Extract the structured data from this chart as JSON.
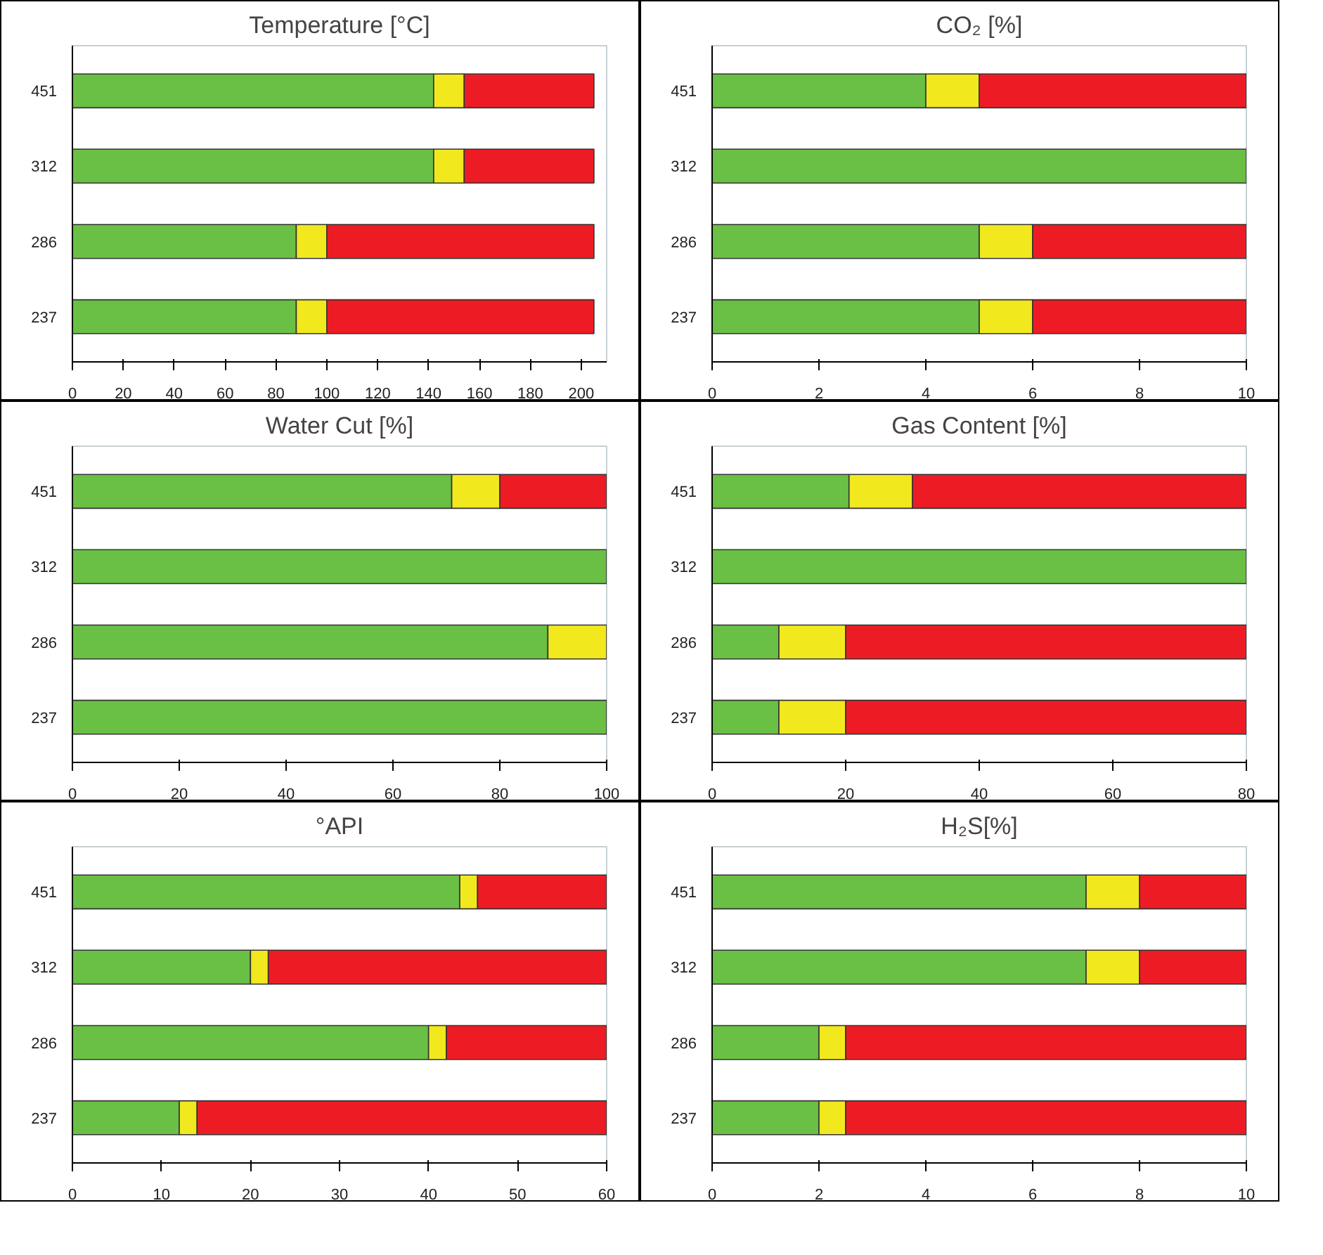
{
  "chart_data": [
    {
      "type": "bar",
      "orientation": "horizontal",
      "stacked": true,
      "title": "Temperature [°C]",
      "categories": [
        "451",
        "312",
        "286",
        "237"
      ],
      "xlim": [
        0,
        210
      ],
      "xticks": [
        0,
        20,
        40,
        60,
        80,
        100,
        120,
        140,
        160,
        180,
        200
      ],
      "series": [
        {
          "color": "#6abf45",
          "values": [
            142,
            142,
            88,
            88
          ]
        },
        {
          "color": "#f2e81e",
          "values": [
            12,
            12,
            12,
            12
          ]
        },
        {
          "color": "#ed1c24",
          "values": [
            51,
            51,
            105,
            105
          ]
        }
      ]
    },
    {
      "type": "bar",
      "orientation": "horizontal",
      "stacked": true,
      "title": "CO₂ [%]",
      "categories": [
        "451",
        "312",
        "286",
        "237"
      ],
      "xlim": [
        0,
        10
      ],
      "xticks": [
        0,
        2,
        4,
        6,
        8,
        10
      ],
      "series": [
        {
          "color": "#6abf45",
          "values": [
            4,
            10,
            5,
            5
          ]
        },
        {
          "color": "#f2e81e",
          "values": [
            1,
            null,
            1,
            1
          ]
        },
        {
          "color": "#ed1c24",
          "values": [
            5,
            null,
            4,
            4
          ]
        }
      ]
    },
    {
      "type": "bar",
      "orientation": "horizontal",
      "stacked": true,
      "title": "Water Cut [%]",
      "categories": [
        "451",
        "312",
        "286",
        "237"
      ],
      "xlim": [
        0,
        100
      ],
      "xticks": [
        0,
        20,
        40,
        60,
        80,
        100
      ],
      "series": [
        {
          "color": "#6abf45",
          "values": [
            71,
            100,
            89,
            100
          ]
        },
        {
          "color": "#f2e81e",
          "values": [
            9,
            null,
            11,
            null
          ]
        },
        {
          "color": "#ed1c24",
          "values": [
            20,
            null,
            null,
            null
          ]
        }
      ]
    },
    {
      "type": "bar",
      "orientation": "horizontal",
      "stacked": true,
      "title": "Gas Content [%]",
      "categories": [
        "451",
        "312",
        "286",
        "237"
      ],
      "xlim": [
        0,
        80
      ],
      "xticks": [
        0,
        20,
        40,
        60,
        80
      ],
      "series": [
        {
          "color": "#6abf45",
          "values": [
            20.5,
            80,
            10,
            10
          ]
        },
        {
          "color": "#f2e81e",
          "values": [
            9.5,
            null,
            10,
            10
          ]
        },
        {
          "color": "#ed1c24",
          "values": [
            50,
            null,
            60,
            60
          ]
        }
      ]
    },
    {
      "type": "bar",
      "orientation": "horizontal",
      "stacked": true,
      "title": "°API",
      "categories": [
        "451",
        "312",
        "286",
        "237"
      ],
      "xlim": [
        0,
        60
      ],
      "xticks": [
        0,
        10,
        20,
        30,
        40,
        50,
        60
      ],
      "series": [
        {
          "color": "#6abf45",
          "values": [
            43.5,
            20,
            40,
            12
          ]
        },
        {
          "color": "#f2e81e",
          "values": [
            2,
            2,
            2,
            2
          ]
        },
        {
          "color": "#ed1c24",
          "values": [
            14.5,
            38,
            18,
            46
          ]
        }
      ]
    },
    {
      "type": "bar",
      "orientation": "horizontal",
      "stacked": true,
      "title": "H₂S[%]",
      "categories": [
        "451",
        "312",
        "286",
        "237"
      ],
      "xlim": [
        0,
        10
      ],
      "xticks": [
        0,
        2,
        4,
        6,
        8,
        10
      ],
      "series": [
        {
          "color": "#6abf45",
          "values": [
            7,
            7,
            2,
            2
          ]
        },
        {
          "color": "#f2e81e",
          "values": [
            1,
            1,
            0.5,
            0.5
          ]
        },
        {
          "color": "#ed1c24",
          "values": [
            2,
            2,
            7.5,
            7.5
          ]
        }
      ]
    }
  ]
}
